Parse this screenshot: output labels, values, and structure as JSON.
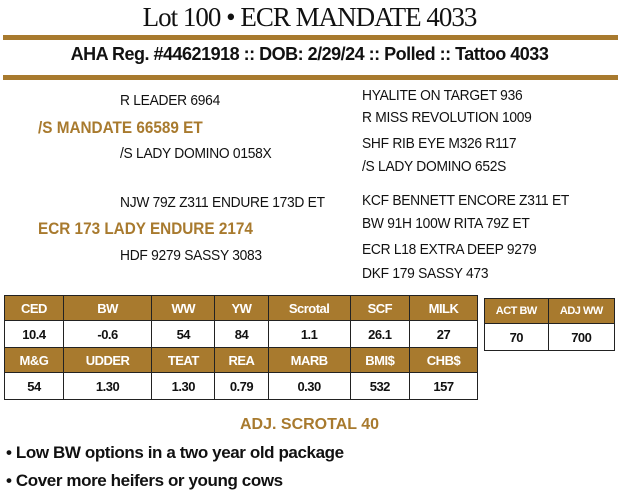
{
  "header": {
    "title": "Lot 100 • ECR MANDATE 4033",
    "subtitle": "AHA Reg. #44621918 :: DOB: 2/29/24 :: Polled :: Tattoo 4033"
  },
  "pedigree": {
    "sire": {
      "name": "/S MANDATE 66589 ET",
      "sire": "R LEADER 6964",
      "dam": "/S LADY DOMINO 0158X",
      "ancestors": [
        "HYALITE ON TARGET 936",
        "R MISS REVOLUTION 1009",
        "SHF RIB EYE M326 R117",
        "/S LADY DOMINO 652S"
      ]
    },
    "dam": {
      "name": "ECR 173 LADY ENDURE 2174",
      "sire": "NJW 79Z Z311 ENDURE 173D ET",
      "dam": "HDF 9279 SASSY 3083",
      "ancestors": [
        "KCF BENNETT ENCORE Z311 ET",
        "BW 91H 100W RITA 79Z ET",
        "ECR L18 EXTRA DEEP 9279",
        "DKF 179 SASSY 473"
      ]
    }
  },
  "epd": {
    "row1_headers": [
      "CED",
      "BW",
      "WW",
      "YW",
      "Scrotal",
      "SCF",
      "MILK"
    ],
    "row1_values": [
      "10.4",
      "-0.6",
      "54",
      "84",
      "1.1",
      "26.1",
      "27"
    ],
    "row2_headers": [
      "M&G",
      "UDDER",
      "TEAT",
      "REA",
      "MARB",
      "BMI$",
      "CHB$"
    ],
    "row2_values": [
      "54",
      "1.30",
      "1.30",
      "0.79",
      "0.30",
      "532",
      "157"
    ]
  },
  "actual": {
    "headers": [
      "ACT BW",
      "ADJ WW"
    ],
    "values": [
      "70",
      "700"
    ]
  },
  "notes": {
    "adj_scrotal": "ADJ. SCROTAL 40",
    "bullets": [
      "Low BW options in a two year old package",
      "Cover more heifers or young cows"
    ]
  },
  "colors": {
    "accent": "#a87a2e"
  }
}
